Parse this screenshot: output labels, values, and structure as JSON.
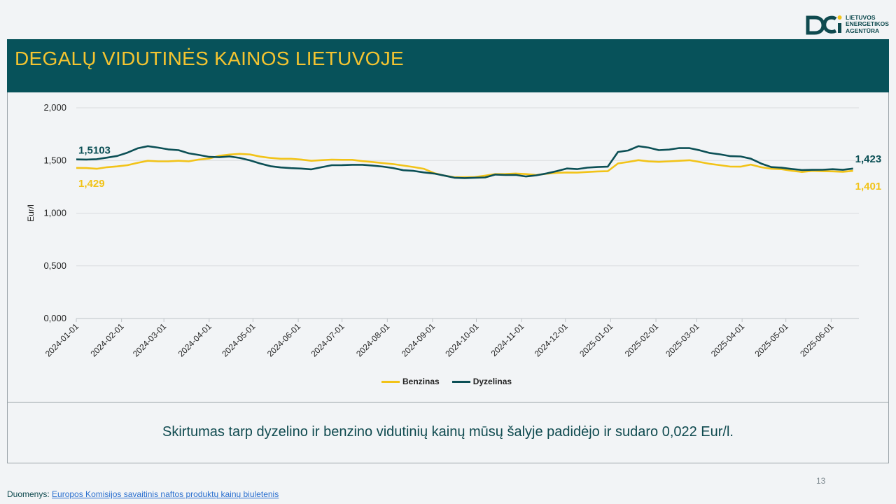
{
  "logo": {
    "line1": "LIETUVOS",
    "line2": "ENERGETIKOS",
    "line3": "AGENTŪRA"
  },
  "header": {
    "title": "DEGALŲ VIDUTINĖS KAINOS LIETUVOJE"
  },
  "colors": {
    "benzinas": "#f2c318",
    "dyzelinas": "#0b4f55",
    "header_bg": "#07525a",
    "title": "#f4c430"
  },
  "chart_data": {
    "type": "line",
    "ylabel": "Eur/l",
    "ylim": [
      0,
      2
    ],
    "yticks": [
      "0,000",
      "0,500",
      "1,000",
      "1,500",
      "2,000"
    ],
    "xtick_labels": [
      "2024-01-01",
      "2024-02-01",
      "2024-03-01",
      "2024-04-01",
      "2024-05-01",
      "2024-06-01",
      "2024-07-01",
      "2024-08-01",
      "2024-09-01",
      "2024-10-01",
      "2024-11-01",
      "2024-12-01",
      "2025-01-01",
      "2025-02-01",
      "2025-03-01",
      "2025-04-01",
      "2025-05-01",
      "2025-06-01"
    ],
    "grid": true,
    "legend_position": "bottom",
    "series": [
      {
        "name": "Benzinas",
        "x": [
          "2024-01-01",
          "2024-01-08",
          "2024-01-15",
          "2024-01-22",
          "2024-01-29",
          "2024-02-05",
          "2024-02-12",
          "2024-02-19",
          "2024-02-26",
          "2024-03-04",
          "2024-03-11",
          "2024-03-18",
          "2024-03-25",
          "2024-04-01",
          "2024-04-08",
          "2024-04-15",
          "2024-04-22",
          "2024-04-29",
          "2024-05-06",
          "2024-05-13",
          "2024-05-20",
          "2024-05-27",
          "2024-06-03",
          "2024-06-10",
          "2024-06-17",
          "2024-06-24",
          "2024-07-01",
          "2024-07-08",
          "2024-07-15",
          "2024-07-22",
          "2024-07-29",
          "2024-08-05",
          "2024-08-12",
          "2024-08-19",
          "2024-08-26",
          "2024-09-02",
          "2024-09-09",
          "2024-09-16",
          "2024-09-23",
          "2024-09-30",
          "2024-10-07",
          "2024-10-14",
          "2024-10-21",
          "2024-10-28",
          "2024-11-04",
          "2024-11-11",
          "2024-11-18",
          "2024-11-25",
          "2024-12-02",
          "2024-12-09",
          "2024-12-16",
          "2024-12-23",
          "2024-12-30",
          "2025-01-06",
          "2025-01-13",
          "2025-01-20",
          "2025-01-27",
          "2025-02-03",
          "2025-02-10",
          "2025-02-17",
          "2025-02-24",
          "2025-03-03",
          "2025-03-10",
          "2025-03-17",
          "2025-03-24",
          "2025-03-31",
          "2025-04-07",
          "2025-04-14",
          "2025-04-21",
          "2025-04-28",
          "2025-05-05",
          "2025-05-12",
          "2025-05-19",
          "2025-05-26",
          "2025-06-02",
          "2025-06-09",
          "2025-06-16"
        ],
        "values": [
          1.429,
          1.428,
          1.421,
          1.436,
          1.444,
          1.455,
          1.478,
          1.497,
          1.492,
          1.492,
          1.497,
          1.492,
          1.509,
          1.518,
          1.545,
          1.556,
          1.563,
          1.557,
          1.537,
          1.524,
          1.516,
          1.516,
          1.509,
          1.497,
          1.503,
          1.508,
          1.506,
          1.506,
          1.494,
          1.486,
          1.475,
          1.466,
          1.452,
          1.438,
          1.421,
          1.381,
          1.356,
          1.341,
          1.341,
          1.343,
          1.356,
          1.371,
          1.372,
          1.376,
          1.371,
          1.362,
          1.374,
          1.383,
          1.386,
          1.385,
          1.391,
          1.396,
          1.398,
          1.472,
          1.486,
          1.503,
          1.491,
          1.487,
          1.492,
          1.497,
          1.502,
          1.486,
          1.468,
          1.455,
          1.442,
          1.441,
          1.461,
          1.436,
          1.421,
          1.417,
          1.402,
          1.391,
          1.401,
          1.398,
          1.397,
          1.393,
          1.401
        ]
      },
      {
        "name": "Dyzelinas",
        "x": [
          "2024-01-01",
          "2024-01-08",
          "2024-01-15",
          "2024-01-22",
          "2024-01-29",
          "2024-02-05",
          "2024-02-12",
          "2024-02-19",
          "2024-02-26",
          "2024-03-04",
          "2024-03-11",
          "2024-03-18",
          "2024-03-25",
          "2024-04-01",
          "2024-04-08",
          "2024-04-15",
          "2024-04-22",
          "2024-04-29",
          "2024-05-06",
          "2024-05-13",
          "2024-05-20",
          "2024-05-27",
          "2024-06-03",
          "2024-06-10",
          "2024-06-17",
          "2024-06-24",
          "2024-07-01",
          "2024-07-08",
          "2024-07-15",
          "2024-07-22",
          "2024-07-29",
          "2024-08-05",
          "2024-08-12",
          "2024-08-19",
          "2024-08-26",
          "2024-09-02",
          "2024-09-09",
          "2024-09-16",
          "2024-09-23",
          "2024-09-30",
          "2024-10-07",
          "2024-10-14",
          "2024-10-21",
          "2024-10-28",
          "2024-11-04",
          "2024-11-11",
          "2024-11-18",
          "2024-11-25",
          "2024-12-02",
          "2024-12-09",
          "2024-12-16",
          "2024-12-23",
          "2024-12-30",
          "2025-01-06",
          "2025-01-13",
          "2025-01-20",
          "2025-01-27",
          "2025-02-03",
          "2025-02-10",
          "2025-02-17",
          "2025-02-24",
          "2025-03-03",
          "2025-03-10",
          "2025-03-17",
          "2025-03-24",
          "2025-03-31",
          "2025-04-07",
          "2025-04-14",
          "2025-04-21",
          "2025-04-28",
          "2025-05-05",
          "2025-05-12",
          "2025-05-19",
          "2025-05-26",
          "2025-06-02",
          "2025-06-09",
          "2025-06-16"
        ],
        "values": [
          1.5103,
          1.509,
          1.512,
          1.527,
          1.543,
          1.574,
          1.615,
          1.636,
          1.622,
          1.605,
          1.598,
          1.568,
          1.552,
          1.534,
          1.531,
          1.538,
          1.524,
          1.501,
          1.471,
          1.446,
          1.434,
          1.427,
          1.423,
          1.416,
          1.436,
          1.455,
          1.456,
          1.459,
          1.459,
          1.451,
          1.442,
          1.428,
          1.407,
          1.401,
          1.387,
          1.376,
          1.357,
          1.336,
          1.333,
          1.336,
          1.339,
          1.366,
          1.362,
          1.363,
          1.348,
          1.359,
          1.377,
          1.399,
          1.424,
          1.418,
          1.432,
          1.438,
          1.441,
          1.581,
          1.595,
          1.636,
          1.622,
          1.598,
          1.603,
          1.618,
          1.617,
          1.597,
          1.571,
          1.558,
          1.541,
          1.538,
          1.517,
          1.471,
          1.437,
          1.431,
          1.419,
          1.409,
          1.411,
          1.412,
          1.417,
          1.411,
          1.423
        ]
      }
    ],
    "annotations": [
      {
        "series": "Dyzelinas",
        "position": "start",
        "label": "1,5103"
      },
      {
        "series": "Benzinas",
        "position": "start",
        "label": "1,429"
      },
      {
        "series": "Dyzelinas",
        "position": "end",
        "label": "1,423"
      },
      {
        "series": "Benzinas",
        "position": "end",
        "label": "1,401"
      }
    ]
  },
  "note": {
    "text": "Skirtumas tarp dyzelino ir benzino vidutinių kainų mūsų šalyje padidėjo ir sudaro 0,022 Eur/l."
  },
  "page_number": "13",
  "source": {
    "prefix": "Duomenys: ",
    "link_text": "Europos Komisijos savaitinis naftos produktų kainų biuletenis"
  }
}
